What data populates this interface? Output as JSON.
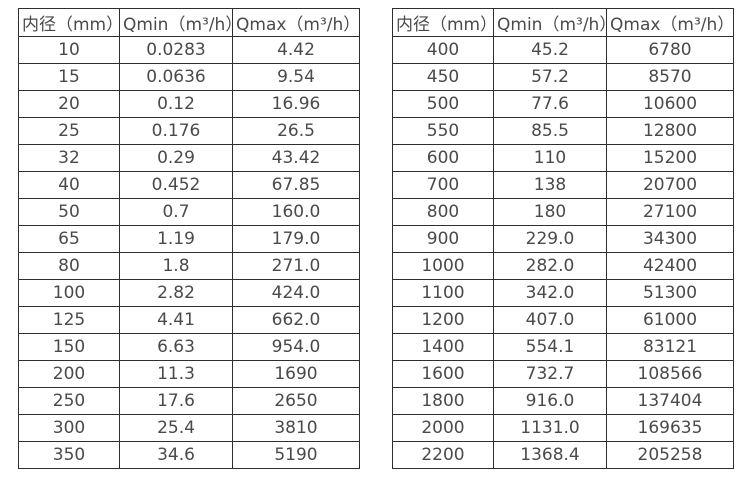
{
  "tables": [
    {
      "name": "small-diameter-flow-rates",
      "headers": [
        "内径（mm）",
        "Qmin（m³/h）",
        "Qmax（m³/h）"
      ],
      "rows": [
        [
          "10",
          "0.0283",
          "4.42"
        ],
        [
          "15",
          "0.0636",
          "9.54"
        ],
        [
          "20",
          "0.12",
          "16.96"
        ],
        [
          "25",
          "0.176",
          "26.5"
        ],
        [
          "32",
          "0.29",
          "43.42"
        ],
        [
          "40",
          "0.452",
          "67.85"
        ],
        [
          "50",
          "0.7",
          "160.0"
        ],
        [
          "65",
          "1.19",
          "179.0"
        ],
        [
          "80",
          "1.8",
          "271.0"
        ],
        [
          "100",
          "2.82",
          "424.0"
        ],
        [
          "125",
          "4.41",
          "662.0"
        ],
        [
          "150",
          "6.63",
          "954.0"
        ],
        [
          "200",
          "11.3",
          "1690"
        ],
        [
          "250",
          "17.6",
          "2650"
        ],
        [
          "300",
          "25.4",
          "3810"
        ],
        [
          "350",
          "34.6",
          "5190"
        ]
      ]
    },
    {
      "name": "large-diameter-flow-rates",
      "headers": [
        "内径（mm）",
        "Qmin（m³/h）",
        "Qmax（m³/h）"
      ],
      "rows": [
        [
          "400",
          "45.2",
          "6780"
        ],
        [
          "450",
          "57.2",
          "8570"
        ],
        [
          "500",
          "77.6",
          "10600"
        ],
        [
          "550",
          "85.5",
          "12800"
        ],
        [
          "600",
          "110",
          "15200"
        ],
        [
          "700",
          "138",
          "20700"
        ],
        [
          "800",
          "180",
          "27100"
        ],
        [
          "900",
          "229.0",
          "34300"
        ],
        [
          "1000",
          "282.0",
          "42400"
        ],
        [
          "1100",
          "342.0",
          "51300"
        ],
        [
          "1200",
          "407.0",
          "61000"
        ],
        [
          "1400",
          "554.1",
          "83121"
        ],
        [
          "1600",
          "732.7",
          "108566"
        ],
        [
          "1800",
          "916.0",
          "137404"
        ],
        [
          "2000",
          "1131.0",
          "169635"
        ],
        [
          "2200",
          "1368.4",
          "205258"
        ]
      ]
    }
  ]
}
